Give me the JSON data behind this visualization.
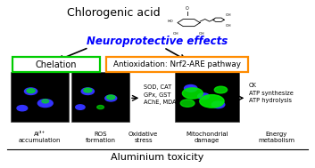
{
  "title": "Chlorogenic acid",
  "neuroprotective_text": "Neuroprotective effects",
  "neuroprotective_color": "#0000FF",
  "chelation_text": "Chelation",
  "chelation_box_color": "#00CC00",
  "antioxidation_text": "Antioxidation: Nrf2-ARE pathway",
  "antioxidation_box_color": "#FF8C00",
  "middle_enzymes": "SOD, CAT\nGPx, GST\nAChE, MDA",
  "right_enzymes": "CK\nATP synthesize\nATP hydrolysis",
  "bottom_labels": [
    "Al³⁺\naccumulation",
    "ROS\nformation",
    "Oxidative\nstress",
    "Mitochondrial\ndamage",
    "Energy\nmetabolism"
  ],
  "footer_text": "Aluminium toxicity",
  "bg_color": "#FFFFFF",
  "panel_bg": "#000000"
}
